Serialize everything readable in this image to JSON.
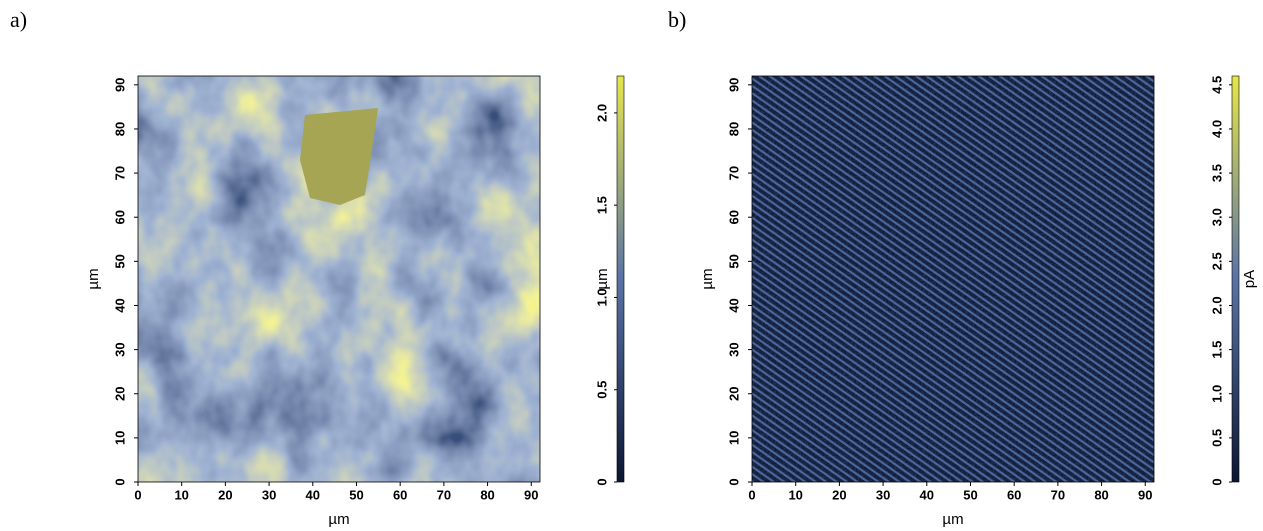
{
  "chart_data": [
    {
      "type": "heatmap",
      "panel_label": "a)",
      "xlabel": "µm",
      "ylabel": "µm",
      "xlim": [
        0,
        92
      ],
      "ylim": [
        0,
        92
      ],
      "xticks": [
        0,
        10,
        20,
        30,
        40,
        50,
        60,
        70,
        80,
        90
      ],
      "yticks": [
        0,
        10,
        20,
        30,
        40,
        50,
        60,
        70,
        80,
        90
      ],
      "colorbar": {
        "label": "µm",
        "lim": [
          0,
          2.2
        ],
        "ticks": [
          0,
          0.5,
          {
            "value": 1,
            "label": "1.0"
          },
          1.5,
          {
            "value": 2,
            "label": "2.0"
          }
        ],
        "colors": [
          "#0b1633",
          "#5a73a6",
          "#e6e64a"
        ]
      }
    },
    {
      "type": "heatmap",
      "panel_label": "b)",
      "xlabel": "µm",
      "ylabel": "µm",
      "xlim": [
        0,
        92
      ],
      "ylim": [
        0,
        92
      ],
      "xticks": [
        0,
        10,
        20,
        30,
        40,
        50,
        60,
        70,
        80,
        90
      ],
      "yticks": [
        0,
        10,
        20,
        30,
        40,
        50,
        60,
        70,
        80,
        90
      ],
      "colorbar": {
        "label": "pA",
        "lim": [
          0,
          4.6
        ],
        "ticks": [
          0,
          0.5,
          {
            "value": 1,
            "label": "1.0"
          },
          1.5,
          {
            "value": 2,
            "label": "2.0"
          },
          2.5,
          {
            "value": 3,
            "label": "3.0"
          },
          3.5,
          {
            "value": 4,
            "label": "4.0"
          },
          4.5
        ],
        "colors": [
          "#0b1633",
          "#5a73a6",
          "#e6e64a"
        ]
      }
    }
  ]
}
